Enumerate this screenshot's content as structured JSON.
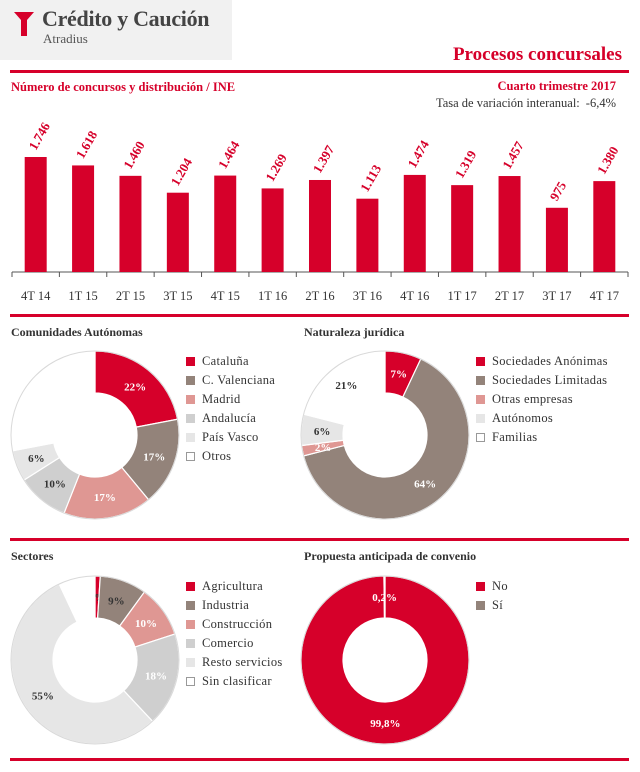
{
  "header": {
    "brand_name": "Crédito y Caución",
    "brand_sub": "Atradius",
    "title": "Procesos concursales"
  },
  "colors": {
    "red": "#d6002a",
    "taupe": "#93837a",
    "pink": "#df9793",
    "light_gray": "#cfcfcf",
    "lighter_gray": "#e6e6e6",
    "white": "#ffffff"
  },
  "bar_section": {
    "title": "Número de concursos y distribución / INE",
    "period": "Cuarto trimestre 2017",
    "rate_label": "Tasa de variación interanual:",
    "rate_value": "-6,4%"
  },
  "chart_data": [
    {
      "type": "bar",
      "categories": [
        "4T 14",
        "1T 15",
        "2T 15",
        "3T 15",
        "4T 15",
        "1T 16",
        "2T 16",
        "3T 16",
        "4T 16",
        "1T 17",
        "2T 17",
        "3T 17",
        "4T 17"
      ],
      "values": [
        1746,
        1618,
        1460,
        1204,
        1464,
        1269,
        1397,
        1113,
        1474,
        1319,
        1457,
        975,
        1380
      ],
      "value_labels": [
        "1.746",
        "1.618",
        "1.460",
        "1.204",
        "1.464",
        "1.269",
        "1.397",
        "1.113",
        "1.474",
        "1.319",
        "1.457",
        "975",
        "1.380"
      ],
      "ylim": [
        0,
        1746
      ],
      "color": "#d6002a"
    },
    {
      "type": "pie",
      "title": "Comunidades Autónomas",
      "labels": [
        "Cataluña",
        "C. Valenciana",
        "Madrid",
        "Andalucía",
        "País Vasco",
        "Otros"
      ],
      "values": [
        22,
        17,
        17,
        10,
        6,
        28
      ],
      "value_labels": [
        "22%",
        "17%",
        "17%",
        "10%",
        "6%",
        ""
      ],
      "colors": [
        "#d6002a",
        "#93837a",
        "#df9793",
        "#cfcfcf",
        "#e6e6e6",
        "#ffffff"
      ]
    },
    {
      "type": "pie",
      "title": "Naturaleza jurídica",
      "labels": [
        "Sociedades Anónimas",
        "Sociedades Limitadas",
        "Otras empresas",
        "Autónomos",
        "Familias"
      ],
      "values": [
        7,
        64,
        2,
        6,
        21
      ],
      "value_labels": [
        "7%",
        "64%",
        "2%",
        "6%",
        "21%"
      ],
      "colors": [
        "#d6002a",
        "#93837a",
        "#df9793",
        "#e6e6e6",
        "#ffffff"
      ]
    },
    {
      "type": "pie",
      "title": "Sectores",
      "labels": [
        "Agricultura",
        "Industria",
        "Construcción",
        "Comercio",
        "Resto servicios",
        "Sin clasificar"
      ],
      "values": [
        1,
        9,
        10,
        18,
        55,
        7
      ],
      "value_labels": [
        "1%",
        "9%",
        "10%",
        "18%",
        "55%",
        ""
      ],
      "colors": [
        "#d6002a",
        "#93837a",
        "#df9793",
        "#cfcfcf",
        "#e6e6e6",
        "#ffffff"
      ]
    },
    {
      "type": "pie",
      "title": "Propuesta anticipada de convenio",
      "labels": [
        "No",
        "Sí"
      ],
      "values": [
        99.8,
        0.2
      ],
      "value_labels": [
        "99,8%",
        "0,2%"
      ],
      "colors": [
        "#d6002a",
        "#93837a"
      ]
    }
  ]
}
